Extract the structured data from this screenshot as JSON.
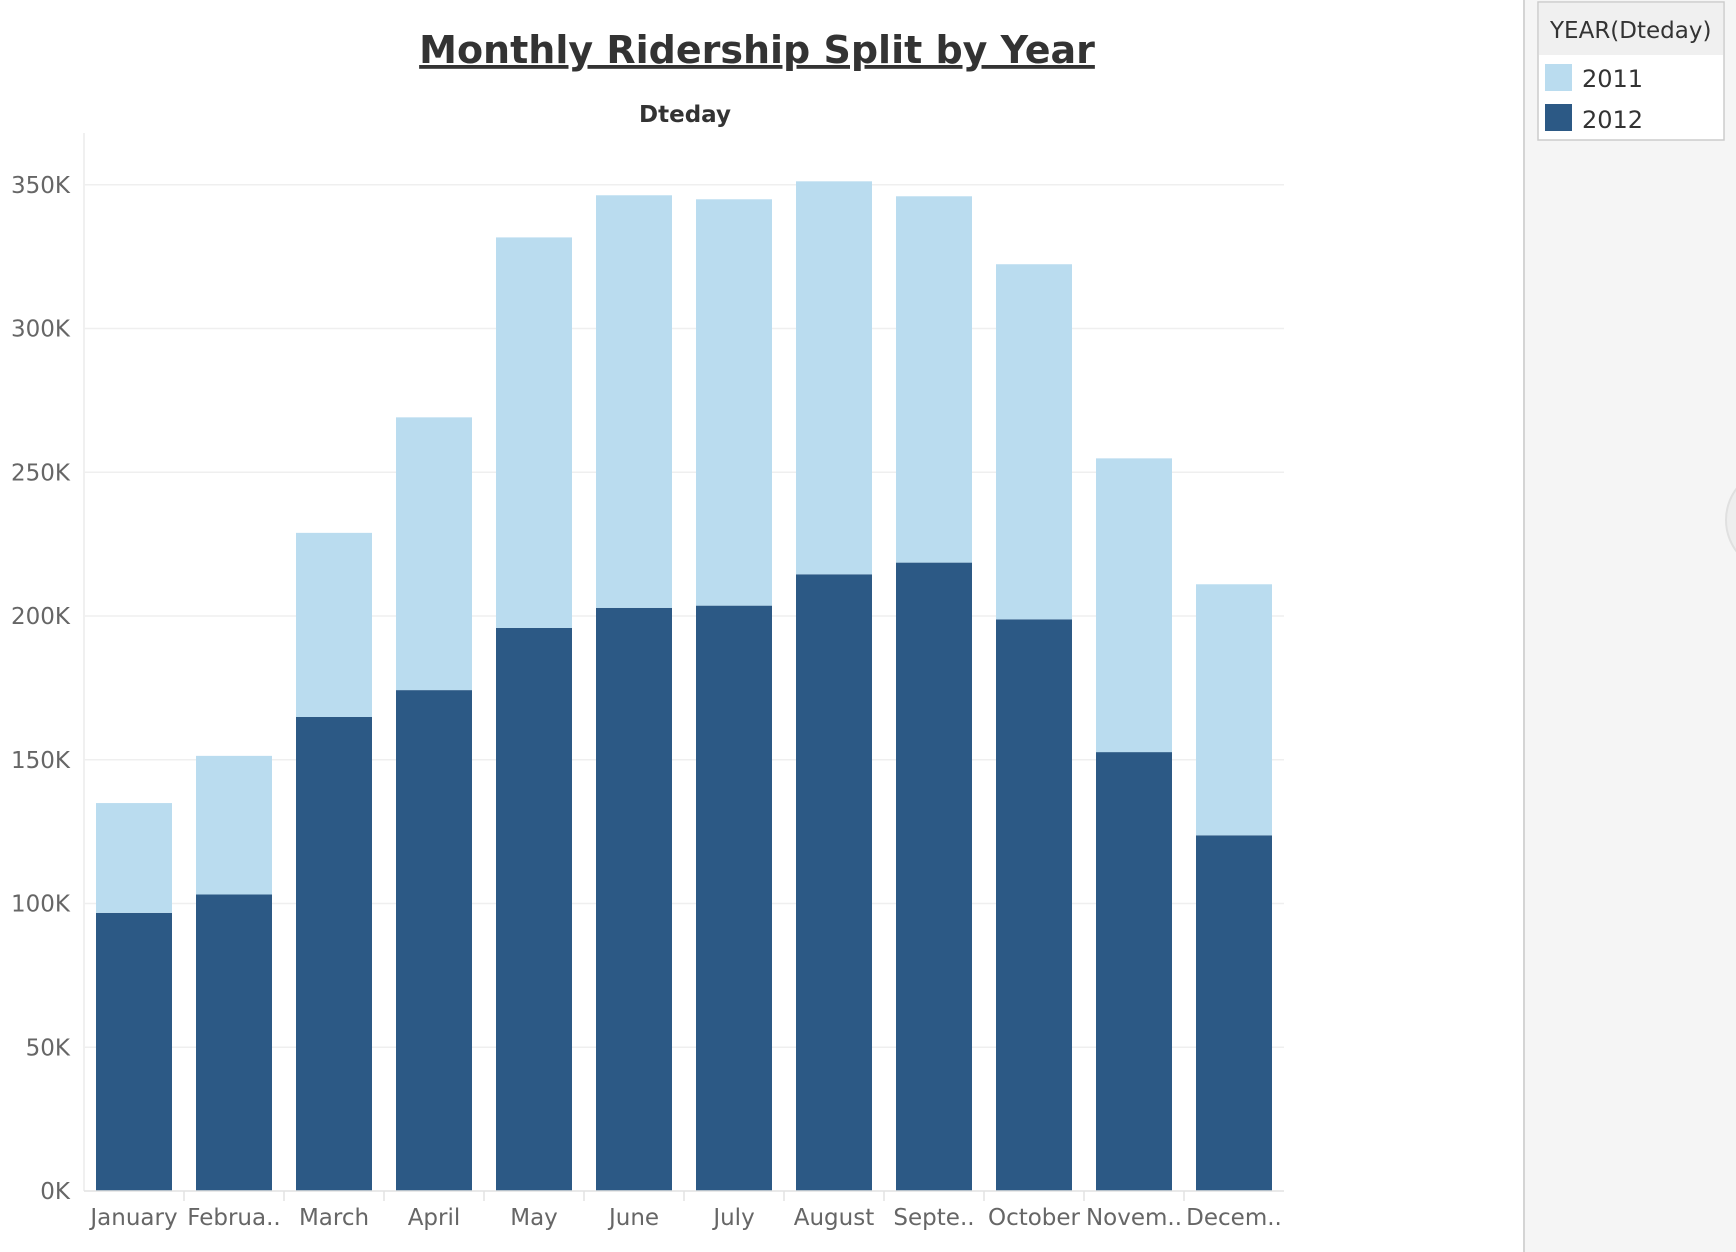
{
  "chart_data": {
    "type": "bar",
    "stacked": true,
    "title": "Monthly Ridership Split by Year",
    "column_header": "Dteday",
    "categories": [
      "January",
      "Februa..",
      "March",
      "April",
      "May",
      "June",
      "July",
      "August",
      "Septe..",
      "October",
      "Novem..",
      "Decem.."
    ],
    "series": [
      {
        "name": "2012",
        "color": "#2c5985",
        "values": [
          96744,
          103137,
          164875,
          174224,
          195865,
          202830,
          203607,
          214503,
          218573,
          198841,
          152664,
          123713
        ]
      },
      {
        "name": "2011",
        "color": "#badcef",
        "values": [
          38189,
          48215,
          64045,
          94870,
          135821,
          143512,
          141341,
          136691,
          127418,
          123511,
          102167,
          87323
        ]
      }
    ],
    "ylim": [
      0,
      368000
    ],
    "yticks": [
      0,
      50000,
      100000,
      150000,
      200000,
      250000,
      300000,
      350000
    ],
    "ytick_labels": [
      "0K",
      "50K",
      "100K",
      "150K",
      "200K",
      "250K",
      "300K",
      "350K"
    ],
    "grid": true,
    "legend": {
      "title": "YEAR(Dteday)",
      "position": "top-right",
      "items": [
        {
          "label": "2011",
          "color": "#badcef"
        },
        {
          "label": "2012",
          "color": "#2c5985"
        }
      ]
    }
  }
}
